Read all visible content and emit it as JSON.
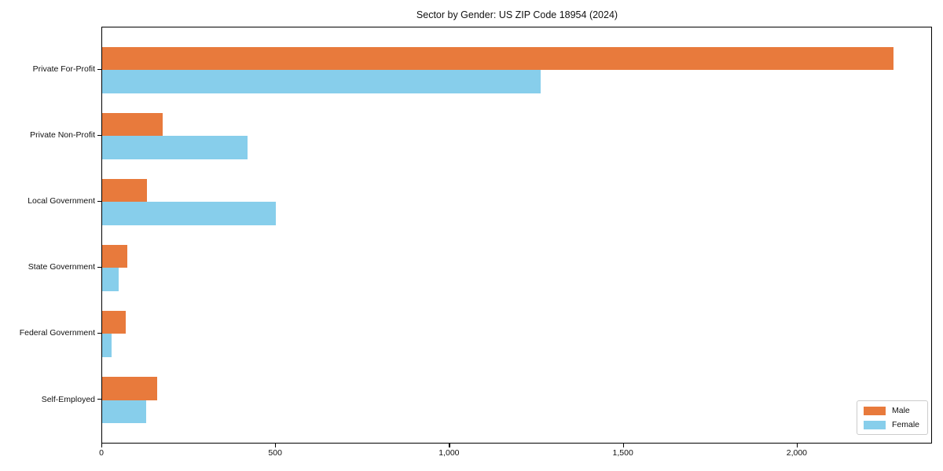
{
  "title": "Sector by Gender: US ZIP Code 18954 (2024)",
  "colors": {
    "male": "#E87A3C",
    "female": "#87CEEB",
    "axis": "#000000",
    "legend_border": "#CCCCCC",
    "background": "#FFFFFF"
  },
  "legend": {
    "entries": [
      {
        "label": "Male",
        "color": "#E87A3C"
      },
      {
        "label": "Female",
        "color": "#87CEEB"
      }
    ],
    "position": "lower right"
  },
  "chart_data": {
    "type": "bar",
    "orientation": "horizontal",
    "title": "Sector by Gender: US ZIP Code 18954 (2024)",
    "xlabel": "",
    "ylabel": "",
    "grid": false,
    "xlim": [
      0,
      2389
    ],
    "categories": [
      "Private For-Profit",
      "Private Non-Profit",
      "Local Government",
      "State Government",
      "Federal Government",
      "Self-Employed"
    ],
    "series": [
      {
        "name": "Male",
        "color": "#E87A3C",
        "values": [
          2275,
          174,
          128,
          73,
          68,
          158
        ]
      },
      {
        "name": "Female",
        "color": "#87CEEB",
        "values": [
          1260,
          418,
          500,
          47,
          26,
          126
        ]
      }
    ],
    "x_ticks": [
      {
        "value": 0,
        "label": "0"
      },
      {
        "value": 500,
        "label": "500"
      },
      {
        "value": 1000,
        "label": "1,000"
      },
      {
        "value": 1500,
        "label": "1,500"
      },
      {
        "value": 2000,
        "label": "2,000"
      }
    ],
    "legend_position": "lower right"
  }
}
